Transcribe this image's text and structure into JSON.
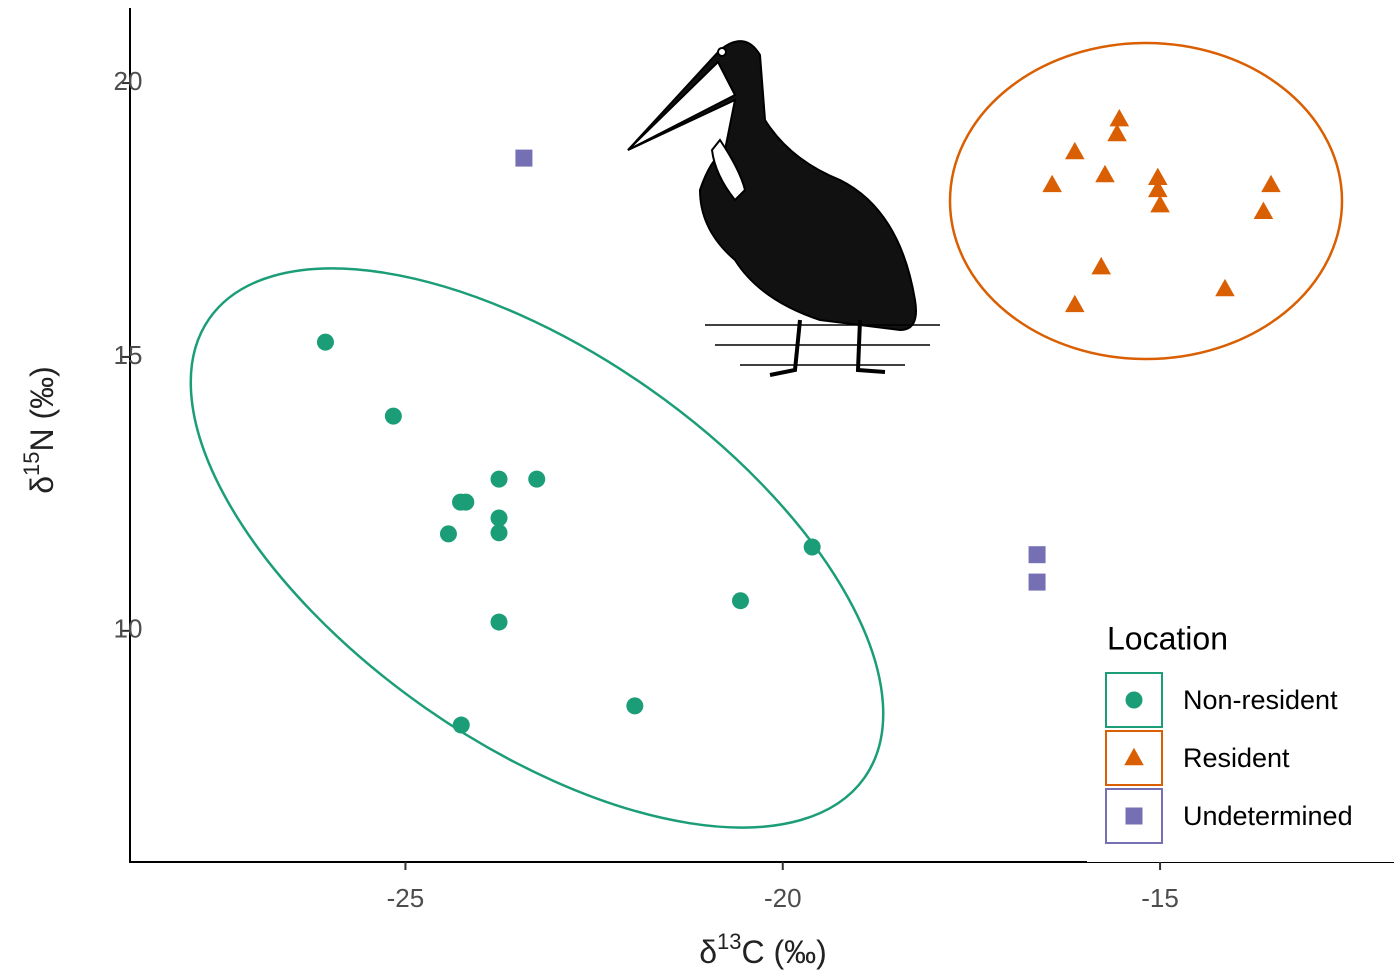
{
  "chart_data": {
    "type": "scatter",
    "xlabel": {
      "prefix": "δ",
      "sup": "13",
      "text": "C (‰)"
    },
    "ylabel": {
      "prefix": "δ",
      "sup": "15",
      "text": "N (‰)"
    },
    "xlim": [
      -28.65,
      -11.9
    ],
    "ylim": [
      5.78,
      21.37
    ],
    "xticks": [
      -25,
      -20,
      -15
    ],
    "yticks": [
      10,
      15,
      20
    ],
    "legend": "bottom-right",
    "legend_title": "Location",
    "series": [
      {
        "name": "Non-resident",
        "color": "#1b9e77",
        "shape": "circle",
        "x": [
          -26.06,
          -25.16,
          -24.43,
          -24.27,
          -24.2,
          -23.76,
          -23.26,
          -23.76,
          -23.76,
          -23.76,
          -24.26,
          -21.96,
          -20.56,
          -19.61
        ],
        "values": [
          15.27,
          13.92,
          11.77,
          12.35,
          12.35,
          12.77,
          12.77,
          12.06,
          11.79,
          10.16,
          8.28,
          8.63,
          10.55,
          11.53
        ]
      },
      {
        "name": "Resident",
        "color": "#d95f02",
        "shape": "triangle",
        "x": [
          -15.54,
          -15.57,
          -16.13,
          -16.43,
          -15.73,
          -15.03,
          -15.03,
          -15.0,
          -13.53,
          -13.63,
          -15.78,
          -14.14,
          -16.13
        ],
        "values": [
          19.34,
          19.07,
          18.74,
          18.14,
          18.32,
          18.27,
          18.05,
          17.77,
          18.14,
          17.65,
          16.64,
          16.24,
          15.95
        ]
      },
      {
        "name": "Undetermined",
        "color": "#7570b3",
        "shape": "square",
        "x": [
          -23.43,
          -16.63,
          -16.63
        ],
        "values": [
          18.63,
          11.39,
          10.89
        ]
      }
    ]
  }
}
